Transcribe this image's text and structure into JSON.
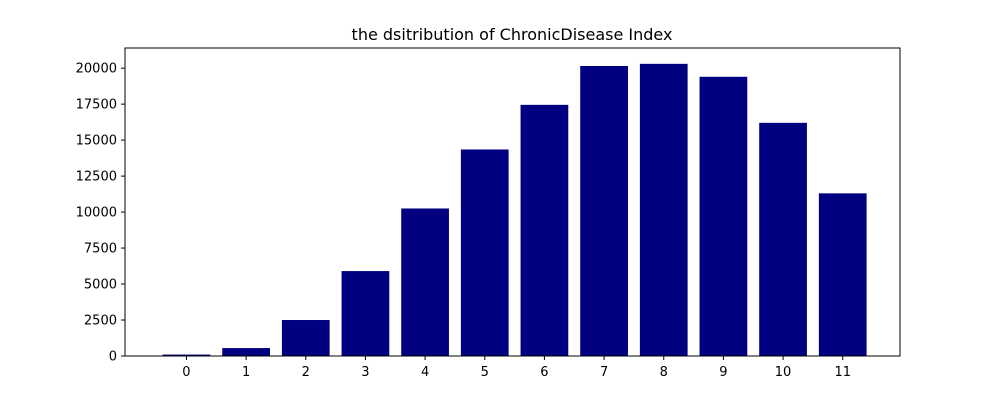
{
  "chart_data": {
    "type": "bar",
    "title": "the dsitribution of ChronicDisease Index",
    "xlabel": "",
    "ylabel": "",
    "categories": [
      "0",
      "1",
      "2",
      "3",
      "4",
      "5",
      "6",
      "7",
      "8",
      "9",
      "10",
      "11"
    ],
    "values": [
      100,
      550,
      2500,
      5900,
      10250,
      14350,
      17450,
      20150,
      20300,
      19400,
      16200,
      11300
    ],
    "ylim": [
      0,
      21400
    ],
    "yticks": [
      0,
      2500,
      5000,
      7500,
      10000,
      12500,
      15000,
      17500,
      20000
    ],
    "ytick_labels": [
      "0",
      "2500",
      "5000",
      "7500",
      "10000",
      "12500",
      "15000",
      "17500",
      "20000"
    ],
    "bar_color": "#000080",
    "grid": false,
    "legend": "none"
  }
}
